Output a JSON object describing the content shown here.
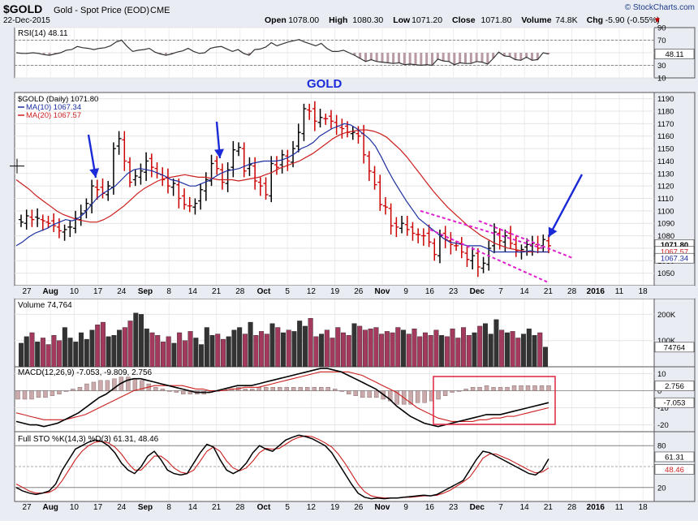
{
  "header": {
    "symbol": "$GOLD",
    "description": "Gold - Spot Price (EOD)",
    "exchange": "CME",
    "date": "22-Dec-2015",
    "brand": "© StockCharts.com",
    "ohlc": [
      {
        "label": "Open",
        "value": "1078.00"
      },
      {
        "label": "High",
        "value": "1080.30"
      },
      {
        "label": "Low",
        "value": "1071.20"
      },
      {
        "label": "Close",
        "value": "1071.80"
      },
      {
        "label": "Volume",
        "value": "74.8K"
      },
      {
        "label": "Chg",
        "value": "-5.90 (-0.55%)"
      }
    ],
    "down_arrow": "▼"
  },
  "colors": {
    "up": "#000000",
    "down": "#cc0000",
    "ma10": "#1c2fa0",
    "ma20": "#cc1f1f",
    "vol_up": "#333333",
    "vol_down": "#a33a5e",
    "annotation_blue": "#1a2ad8",
    "annotation_magenta": "#e020d0",
    "box_red": "#e0304a",
    "stoch_fast": "#000000",
    "stoch_slow": "#cc1f1f"
  },
  "chart_data": [
    {
      "panel": "rsi",
      "type": "line",
      "legend": "RSI(14) 48.11",
      "ylim": [
        10,
        90
      ],
      "yticks": [
        "90",
        "70",
        "50",
        "30",
        "10"
      ],
      "current_label": "48.11",
      "overbought": 70,
      "oversold": 30,
      "values": [
        50,
        49,
        49,
        50,
        49,
        47,
        46,
        48,
        50,
        54,
        55,
        60,
        58,
        57,
        55,
        57,
        58,
        61,
        67,
        70,
        60,
        52,
        54,
        55,
        57,
        51,
        48,
        46,
        48,
        51,
        53,
        57,
        52,
        49,
        50,
        57,
        59,
        60,
        56,
        52,
        55,
        49,
        46,
        55,
        56,
        59,
        66,
        61,
        64,
        67,
        69,
        71,
        67,
        64,
        61,
        65,
        57,
        52,
        52,
        54,
        50,
        46,
        41,
        36,
        39,
        36,
        35,
        34,
        33,
        34,
        31,
        32,
        31,
        30,
        31,
        30,
        40,
        37,
        36,
        31,
        34,
        33,
        33,
        36,
        35,
        32,
        41,
        51,
        45,
        44,
        39,
        38,
        43,
        38,
        39,
        50,
        48
      ]
    },
    {
      "panel": "price",
      "type": "ohlc",
      "annotation_title": "GOLD",
      "legend": [
        {
          "text": "$GOLD (Daily) 1071.80",
          "color": "#000000"
        },
        {
          "text": "MA(10) 1067.34",
          "color": "#1c2fa0"
        },
        {
          "text": "MA(20) 1067.57",
          "color": "#cc1f1f"
        }
      ],
      "ylim": [
        1040,
        1195
      ],
      "yticks": [
        "1190",
        "1180",
        "1170",
        "1160",
        "1150",
        "1140",
        "1130",
        "1120",
        "1110",
        "1100",
        "1090",
        "1080",
        "1070",
        "1060",
        "1050"
      ],
      "price_tags": [
        "1071.80",
        "1067.57",
        "1067.34"
      ],
      "xticks": [
        "27",
        "Aug",
        "10",
        "17",
        "24",
        "Sep",
        "8",
        "14",
        "21",
        "28",
        "Oct",
        "5",
        "12",
        "19",
        "26",
        "Nov",
        "9",
        "16",
        "23",
        "Dec",
        "7",
        "14",
        "21",
        "28",
        "2016",
        "11",
        "18"
      ],
      "closes": [
        1091,
        1096,
        1093,
        1094,
        1092,
        1090,
        1088,
        1084,
        1085,
        1087,
        1094,
        1098,
        1106,
        1120,
        1117,
        1114,
        1120,
        1150,
        1158,
        1140,
        1123,
        1128,
        1132,
        1140,
        1135,
        1130,
        1125,
        1120,
        1122,
        1110,
        1105,
        1104,
        1106,
        1117,
        1125,
        1138,
        1134,
        1123,
        1133,
        1149,
        1151,
        1132,
        1137,
        1124,
        1120,
        1113,
        1138,
        1135,
        1145,
        1140,
        1150,
        1163,
        1182,
        1180,
        1172,
        1175,
        1174,
        1172,
        1168,
        1166,
        1163,
        1163,
        1160,
        1145,
        1132,
        1121,
        1105,
        1103,
        1088,
        1087,
        1090,
        1085,
        1082,
        1081,
        1080,
        1075,
        1065,
        1080,
        1077,
        1073,
        1072,
        1067,
        1061,
        1064,
        1055,
        1058,
        1070,
        1083,
        1076,
        1080,
        1074,
        1068,
        1069,
        1073,
        1074,
        1070,
        1077,
        1072
      ],
      "ma10": [
        1072,
        1075,
        1079,
        1082,
        1084,
        1086,
        1089,
        1091,
        1093,
        1092,
        1094,
        1098,
        1104,
        1110,
        1114,
        1117,
        1120,
        1125,
        1130,
        1133,
        1134,
        1133,
        1132,
        1130,
        1128,
        1125,
        1124,
        1122,
        1120,
        1120,
        1122,
        1124,
        1127,
        1130,
        1132,
        1133,
        1134,
        1136,
        1138,
        1139,
        1140,
        1140,
        1140,
        1141,
        1143,
        1146,
        1150,
        1152,
        1155,
        1160,
        1163,
        1166,
        1168,
        1170,
        1169,
        1166,
        1162,
        1158,
        1152,
        1143,
        1133,
        1124,
        1116,
        1108,
        1101,
        1094,
        1090,
        1086,
        1082,
        1078,
        1075,
        1074,
        1073,
        1072,
        1072,
        1072,
        1070,
        1067,
        1067,
        1067,
        1067,
        1067,
        1067,
        1068,
        1067,
        1067,
        1067
      ],
      "ma20": [
        1125,
        1121,
        1117,
        1112,
        1108,
        1104,
        1100,
        1097,
        1095,
        1093,
        1092,
        1091,
        1091,
        1093,
        1096,
        1100,
        1104,
        1109,
        1114,
        1118,
        1121,
        1124,
        1126,
        1127,
        1128,
        1129,
        1128,
        1127,
        1127,
        1126,
        1125,
        1125,
        1125,
        1124,
        1125,
        1126,
        1127,
        1129,
        1131,
        1134,
        1136,
        1138,
        1140,
        1143,
        1146,
        1150,
        1154,
        1158,
        1161,
        1163,
        1164,
        1165,
        1165,
        1164,
        1162,
        1159,
        1154,
        1149,
        1143,
        1136,
        1129,
        1122,
        1115,
        1109,
        1103,
        1098,
        1093,
        1088,
        1084,
        1080,
        1077,
        1074,
        1072,
        1070,
        1069,
        1068,
        1067,
        1067,
        1067,
        1067
      ]
    },
    {
      "panel": "volume",
      "type": "bar",
      "legend": "Volume 74,764",
      "yticks": [
        "200K",
        "100K"
      ],
      "ylim": [
        0,
        260000
      ],
      "current_label": "74764",
      "values": [
        90000,
        115000,
        130000,
        95000,
        110000,
        85000,
        120000,
        100000,
        150000,
        110000,
        95000,
        130000,
        105000,
        140000,
        160000,
        170000,
        115000,
        120000,
        140000,
        150000,
        175000,
        205000,
        200000,
        145000,
        130000,
        120000,
        95000,
        115000,
        90000,
        130000,
        100000,
        135000,
        110000,
        85000,
        150000,
        120000,
        125000,
        105000,
        115000,
        140000,
        150000,
        125000,
        170000,
        120000,
        135000,
        125000,
        165000,
        150000,
        130000,
        140000,
        135000,
        175000,
        155000,
        185000,
        115000,
        125000,
        140000,
        110000,
        150000,
        130000,
        120000,
        165000,
        155000,
        140000,
        145000,
        150000,
        125000,
        135000,
        130000,
        150000,
        140000,
        125000,
        145000,
        115000,
        130000,
        120000,
        140000,
        120000,
        115000,
        145000,
        110000,
        150000,
        120000,
        130000,
        155000,
        165000,
        125000,
        180000,
        140000,
        130000,
        135000,
        110000,
        125000,
        145000,
        120000,
        130000,
        75000
      ]
    },
    {
      "panel": "macd",
      "type": "line",
      "legend": "MACD(12,26,9) -7.053, -9.809, 2.756",
      "yticks": [
        "10",
        "0",
        "-10",
        "-20"
      ],
      "ylim": [
        -24,
        14
      ],
      "current_labels": [
        "2.756",
        "-7.053"
      ],
      "macd": [
        -18,
        -19,
        -20,
        -20,
        -21,
        -20,
        -19,
        -17,
        -15,
        -13,
        -10,
        -7,
        -4,
        -2,
        1,
        4,
        6,
        7,
        7,
        6,
        5,
        4,
        3,
        2,
        1,
        0,
        -1,
        -1,
        -1,
        0,
        1,
        2,
        3,
        3,
        3,
        4,
        5,
        6,
        7,
        8,
        9,
        10,
        11,
        12,
        13,
        13,
        12,
        11,
        9,
        7,
        5,
        3,
        1,
        -2,
        -5,
        -9,
        -12,
        -15,
        -17,
        -19,
        -20,
        -21,
        -20,
        -19,
        -18,
        -17,
        -16,
        -15,
        -14,
        -14,
        -14,
        -13,
        -12,
        -11,
        -10,
        -9,
        -8,
        -7
      ],
      "signal": [
        -13,
        -14,
        -15,
        -16,
        -17,
        -17,
        -17,
        -17,
        -16,
        -15,
        -14,
        -12,
        -10,
        -8,
        -6,
        -4,
        -2,
        0,
        1,
        2,
        3,
        3,
        3,
        3,
        3,
        2,
        1,
        1,
        0,
        0,
        0,
        1,
        1,
        2,
        2,
        2,
        3,
        4,
        5,
        6,
        7,
        8,
        9,
        10,
        11,
        11,
        11,
        11,
        11,
        10,
        9,
        7,
        5,
        3,
        1,
        -1,
        -4,
        -7,
        -10,
        -12,
        -14,
        -16,
        -17,
        -18,
        -18,
        -18,
        -18,
        -17,
        -17,
        -16,
        -16,
        -15,
        -15,
        -14,
        -13,
        -12,
        -11,
        -10
      ],
      "histogram": [
        -5,
        -5,
        -5,
        -4,
        -4,
        -3,
        -2,
        0,
        1,
        2,
        4,
        5,
        6,
        6,
        7,
        8,
        8,
        7,
        6,
        4,
        2,
        1,
        0,
        -1,
        -2,
        -2,
        -2,
        -2,
        -1,
        0,
        1,
        1,
        2,
        1,
        1,
        2,
        2,
        2,
        2,
        2,
        2,
        2,
        2,
        2,
        2,
        2,
        1,
        0,
        -2,
        -3,
        -4,
        -4,
        -4,
        -5,
        -6,
        -8,
        -8,
        -8,
        -7,
        -7,
        -6,
        -5,
        -3,
        -1,
        0,
        1,
        2,
        2,
        3,
        2,
        2,
        2,
        3,
        3,
        3,
        3,
        3,
        3
      ]
    },
    {
      "panel": "stochastic",
      "type": "line",
      "legend": "Full STO %K(14,3) %D(3) 61.31, 48.46",
      "yticks": [
        "80",
        "20"
      ],
      "ylim": [
        0,
        100
      ],
      "current_labels": [
        "61.31",
        "48.46"
      ],
      "k": [
        20,
        15,
        12,
        10,
        12,
        15,
        25,
        45,
        60,
        75,
        80,
        85,
        88,
        86,
        80,
        70,
        55,
        45,
        40,
        50,
        65,
        72,
        60,
        45,
        40,
        38,
        40,
        55,
        70,
        82,
        78,
        60,
        45,
        40,
        45,
        55,
        70,
        80,
        75,
        72,
        80,
        88,
        92,
        95,
        93,
        90,
        85,
        80,
        70,
        55,
        40,
        25,
        12,
        6,
        4,
        5,
        4,
        5,
        5,
        6,
        7,
        8,
        9,
        8,
        10,
        15,
        20,
        25,
        30,
        45,
        60,
        72,
        70,
        65,
        60,
        55,
        50,
        45,
        40,
        38,
        45,
        61
      ],
      "d": [
        25,
        20,
        15,
        12,
        12,
        13,
        18,
        30,
        45,
        60,
        72,
        80,
        85,
        86,
        84,
        78,
        68,
        55,
        45,
        45,
        55,
        65,
        65,
        58,
        48,
        42,
        40,
        45,
        58,
        72,
        78,
        72,
        58,
        48,
        44,
        48,
        58,
        70,
        76,
        75,
        76,
        82,
        88,
        92,
        94,
        93,
        89,
        84,
        78,
        68,
        55,
        40,
        25,
        14,
        8,
        6,
        5,
        5,
        5,
        6,
        6,
        7,
        8,
        8,
        9,
        12,
        16,
        22,
        28,
        35,
        48,
        62,
        68,
        68,
        64,
        60,
        55,
        50,
        45,
        41,
        42,
        48
      ]
    }
  ]
}
